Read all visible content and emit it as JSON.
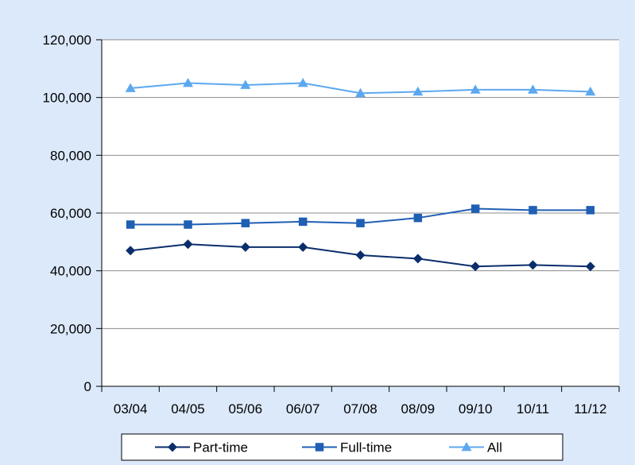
{
  "chart_data": {
    "type": "line",
    "title": "",
    "xlabel": "",
    "ylabel": "",
    "categories": [
      "03/04",
      "04/05",
      "05/06",
      "06/07",
      "07/08",
      "08/09",
      "09/10",
      "10/11",
      "11/12"
    ],
    "ylim": [
      0,
      120000
    ],
    "yticks": [
      0,
      20000,
      40000,
      60000,
      80000,
      100000,
      120000
    ],
    "ytick_labels": [
      "0",
      "20,000",
      "40,000",
      "60,000",
      "80,000",
      "100,000",
      "120,000"
    ],
    "grid": true,
    "legend_position": "bottom",
    "series": [
      {
        "name": "Part-time",
        "color": "#0a2e6b",
        "marker": "diamond",
        "values": [
          47000,
          49200,
          48200,
          48200,
          45400,
          44200,
          41500,
          42000,
          41500
        ]
      },
      {
        "name": "Full-time",
        "color": "#1f5fb4",
        "marker": "square",
        "values": [
          56000,
          56000,
          56500,
          57000,
          56500,
          58300,
          61500,
          61000,
          61000
        ]
      },
      {
        "name": "All",
        "color": "#5ca8f0",
        "marker": "triangle",
        "values": [
          103200,
          105000,
          104300,
          105000,
          101500,
          102000,
          102700,
          102700,
          102000
        ]
      }
    ]
  }
}
